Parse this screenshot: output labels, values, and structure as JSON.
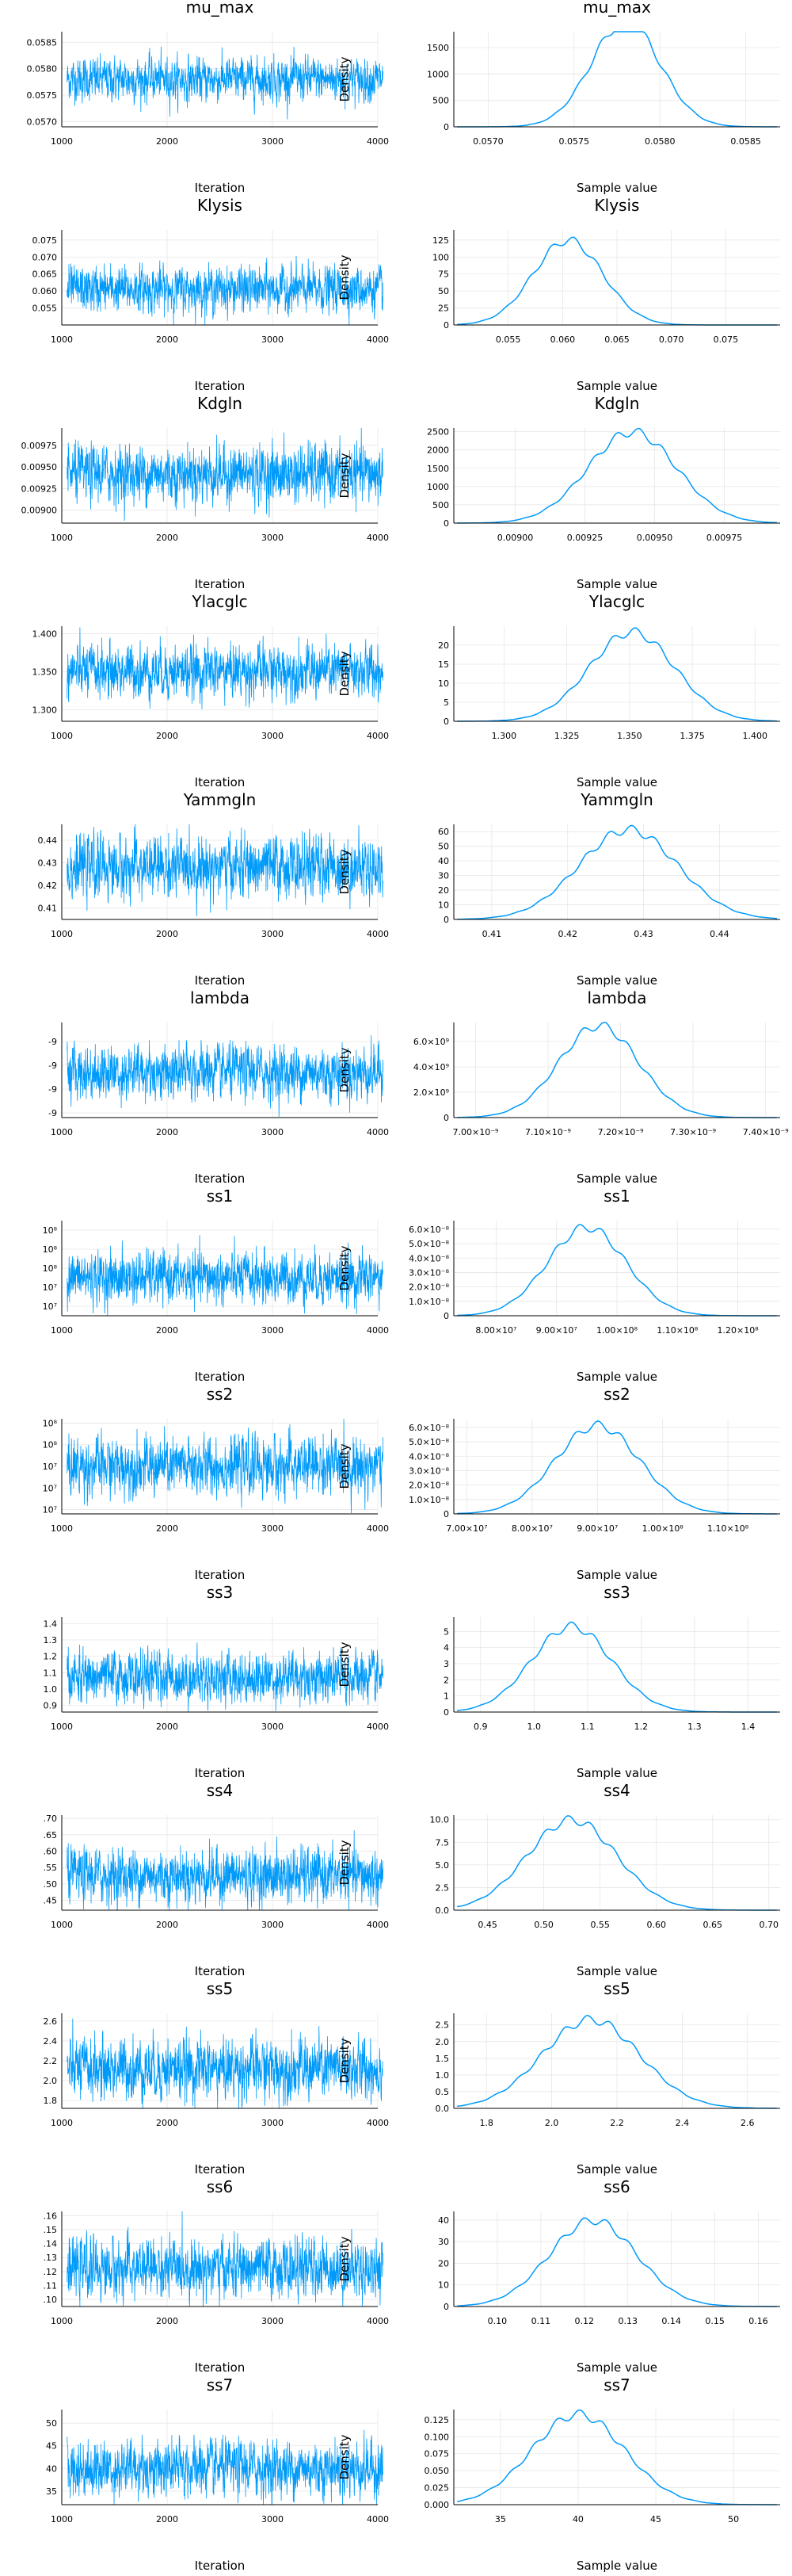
{
  "colors": {
    "series": "#009AFA",
    "axis": "#000000",
    "grid": "#e6e6e6"
  },
  "chart_data": [
    {
      "param": "mu_max",
      "mean": 0.0578,
      "sd": 0.0002,
      "trace": {
        "type": "line",
        "title": "mu_max",
        "xlabel": "Iteration",
        "ylabel": "",
        "x_range": [
          1000,
          4000
        ],
        "x_ticks": [
          "1000",
          "2000",
          "3000",
          "4000"
        ],
        "y_range": [
          0.0569,
          0.0587
        ],
        "y_ticks": [
          0.057,
          0.0575,
          0.058,
          0.0585
        ],
        "y_tick_labels": [
          "0.0570",
          "0.0575",
          "0.0580",
          "0.0585"
        ]
      },
      "density": {
        "type": "line",
        "title": "mu_max",
        "xlabel": "Sample value",
        "ylabel": "Density",
        "x_range": [
          0.0568,
          0.0587
        ],
        "x_ticks": [
          0.057,
          0.0575,
          0.058,
          0.0585
        ],
        "x_tick_labels": [
          "0.0570",
          "0.0575",
          "0.0580",
          "0.0585"
        ],
        "y_range": [
          0,
          1800
        ],
        "y_ticks": [
          0,
          500,
          1000,
          1500
        ],
        "y_tick_labels": [
          "0",
          "500",
          "1000",
          "1500"
        ]
      }
    },
    {
      "param": "Klysis",
      "mean": 0.0605,
      "sd": 0.0032,
      "trace": {
        "type": "line",
        "title": "Klysis",
        "xlabel": "Iteration",
        "ylabel": "",
        "x_range": [
          1000,
          4000
        ],
        "x_ticks": [
          "1000",
          "2000",
          "3000",
          "4000"
        ],
        "y_range": [
          0.05,
          0.078
        ],
        "y_ticks": [
          0.055,
          0.06,
          0.065,
          0.07,
          0.075
        ],
        "y_tick_labels": [
          "0.055",
          "0.060",
          "0.065",
          "0.070",
          "0.075"
        ]
      },
      "density": {
        "type": "line",
        "title": "Klysis",
        "xlabel": "Sample value",
        "ylabel": "Density",
        "x_range": [
          0.05,
          0.08
        ],
        "x_ticks": [
          0.055,
          0.06,
          0.065,
          0.07,
          0.075
        ],
        "x_tick_labels": [
          "0.055",
          "0.060",
          "0.065",
          "0.070",
          "0.075"
        ],
        "y_range": [
          0,
          140
        ],
        "y_ticks": [
          0,
          25,
          50,
          75,
          100,
          125
        ],
        "y_tick_labels": [
          "0",
          "25",
          "50",
          "75",
          "100",
          "125"
        ]
      }
    },
    {
      "param": "Kdgln",
      "mean": 0.00942,
      "sd": 0.00016,
      "trace": {
        "type": "line",
        "title": "Kdgln",
        "xlabel": "Iteration",
        "ylabel": "",
        "x_range": [
          1000,
          4000
        ],
        "x_ticks": [
          "1000",
          "2000",
          "3000",
          "4000"
        ],
        "y_range": [
          0.00885,
          0.00995
        ],
        "y_ticks": [
          0.009,
          0.00925,
          0.0095,
          0.00975
        ],
        "y_tick_labels": [
          "0.00900",
          "0.00925",
          "0.00950",
          "0.00975"
        ]
      },
      "density": {
        "type": "line",
        "title": "Kdgln",
        "xlabel": "Sample value",
        "ylabel": "Density",
        "x_range": [
          0.00878,
          0.00995
        ],
        "x_ticks": [
          0.009,
          0.00925,
          0.0095,
          0.00975
        ],
        "x_tick_labels": [
          "0.00900",
          "0.00925",
          "0.00950",
          "0.00975"
        ],
        "y_range": [
          0,
          2600
        ],
        "y_ticks": [
          0,
          500,
          1000,
          1500,
          2000,
          2500
        ],
        "y_tick_labels": [
          "0",
          "500",
          "1000",
          "1500",
          "2000",
          "2500"
        ]
      }
    },
    {
      "param": "Ylacglc",
      "mean": 1.351,
      "sd": 0.017,
      "trace": {
        "type": "line",
        "title": "Ylacglc",
        "xlabel": "Iteration",
        "ylabel": "",
        "x_range": [
          1000,
          4000
        ],
        "x_ticks": [
          "1000",
          "2000",
          "3000",
          "4000"
        ],
        "y_range": [
          1.285,
          1.41
        ],
        "y_ticks": [
          1.3,
          1.35,
          1.4
        ],
        "y_tick_labels": [
          "1.300",
          "1.350",
          "1.400"
        ]
      },
      "density": {
        "type": "line",
        "title": "Ylacglc",
        "xlabel": "Sample value",
        "ylabel": "Density",
        "x_range": [
          1.28,
          1.41
        ],
        "x_ticks": [
          1.3,
          1.325,
          1.35,
          1.375,
          1.4
        ],
        "x_tick_labels": [
          "1.300",
          "1.325",
          "1.350",
          "1.375",
          "1.400"
        ],
        "y_range": [
          0,
          25
        ],
        "y_ticks": [
          0,
          5,
          10,
          15,
          20
        ],
        "y_tick_labels": [
          "0",
          "5",
          "10",
          "15",
          "20"
        ]
      }
    },
    {
      "param": "Yammgln",
      "mean": 0.428,
      "sd": 0.0065,
      "trace": {
        "type": "line",
        "title": "Yammgln",
        "xlabel": "Iteration",
        "ylabel": "",
        "x_range": [
          1000,
          4000
        ],
        "x_ticks": [
          "1000",
          "2000",
          "3000",
          "4000"
        ],
        "y_range": [
          0.405,
          0.447
        ],
        "y_ticks": [
          0.41,
          0.42,
          0.43,
          0.44
        ],
        "y_tick_labels": [
          "0.41",
          "0.42",
          "0.43",
          "0.44"
        ]
      },
      "density": {
        "type": "line",
        "title": "Yammgln",
        "xlabel": "Sample value",
        "ylabel": "Density",
        "x_range": [
          0.405,
          0.448
        ],
        "x_ticks": [
          0.41,
          0.42,
          0.43,
          0.44
        ],
        "x_tick_labels": [
          "0.41",
          "0.42",
          "0.43",
          "0.44"
        ],
        "y_range": [
          0,
          65
        ],
        "y_ticks": [
          0,
          10,
          20,
          30,
          40,
          50,
          60
        ],
        "y_tick_labels": [
          "0",
          "10",
          "20",
          "30",
          "40",
          "50",
          "60"
        ]
      }
    },
    {
      "param": "lambda",
      "mean": 7.17e-09,
      "sd": 5.5e-11,
      "trace": {
        "type": "line",
        "title": "lambda",
        "xlabel": "Iteration",
        "ylabel": "",
        "x_range": [
          1000,
          4000
        ],
        "x_ticks": [
          "1000",
          "2000",
          "3000",
          "4000"
        ],
        "y_range": [
          6.98e-09,
          7.38e-09
        ],
        "y_ticks": [
          7e-09,
          7.1e-09,
          7.2e-09,
          7.3e-09
        ],
        "y_tick_labels": [
          "-9",
          "-9",
          "-9",
          "-9"
        ]
      },
      "density": {
        "type": "line",
        "title": "lambda",
        "xlabel": "Sample value",
        "ylabel": "Density",
        "x_range": [
          6.97e-09,
          7.42e-09
        ],
        "x_ticks": [
          7e-09,
          7.1e-09,
          7.2e-09,
          7.3e-09,
          7.4e-09
        ],
        "x_tick_labels": [
          "7.00×10⁻⁹",
          "7.10×10⁻⁹",
          "7.20×10⁻⁹",
          "7.30×10⁻⁹",
          "7.40×10⁻⁹"
        ],
        "y_range": [
          0,
          7500000000.0
        ],
        "y_ticks": [
          0,
          2000000000.0,
          4000000000.0,
          6000000000.0
        ],
        "y_tick_labels": [
          "0",
          "2.0×10⁹",
          "4.0×10⁹",
          "6.0×10⁹"
        ]
      }
    },
    {
      "param": "ss1",
      "mean": 95000000.0,
      "sd": 6500000.0,
      "trace": {
        "type": "line",
        "title": "ss1",
        "xlabel": "Iteration",
        "ylabel": "",
        "x_range": [
          1000,
          4000
        ],
        "x_ticks": [
          "1000",
          "2000",
          "3000",
          "4000"
        ],
        "y_range": [
          75000000.0,
          125000000.0
        ],
        "y_ticks": [
          80000000.0,
          90000000.0,
          100000000.0,
          110000000.0,
          120000000.0
        ],
        "y_tick_labels": [
          "10⁷",
          "10⁷",
          "10⁸",
          "10⁸",
          "10⁸"
        ]
      },
      "density": {
        "type": "line",
        "title": "ss1",
        "xlabel": "Sample value",
        "ylabel": "Density",
        "x_range": [
          73000000.0,
          127000000.0
        ],
        "x_ticks": [
          80000000.0,
          90000000.0,
          100000000.0,
          110000000.0,
          120000000.0
        ],
        "x_tick_labels": [
          "8.00×10⁷",
          "9.00×10⁷",
          "1.00×10⁸",
          "1.10×10⁸",
          "1.20×10⁸"
        ],
        "y_range": [
          0,
          6.6e-08
        ],
        "y_ticks": [
          0,
          1e-08,
          2e-08,
          3e-08,
          4e-08,
          5e-08,
          6e-08
        ],
        "y_tick_labels": [
          "0",
          "1.0×10⁻⁸",
          "2.0×10⁻⁸",
          "3.0×10⁻⁸",
          "4.0×10⁻⁸",
          "5.0×10⁻⁸",
          "6.0×10⁻⁸"
        ]
      }
    },
    {
      "param": "ss2",
      "mean": 90000000.0,
      "sd": 6500000.0,
      "trace": {
        "type": "line",
        "title": "ss2",
        "xlabel": "Iteration",
        "ylabel": "",
        "x_range": [
          1000,
          4000
        ],
        "x_ticks": [
          "1000",
          "2000",
          "3000",
          "4000"
        ],
        "y_range": [
          68000000.0,
          112000000.0
        ],
        "y_ticks": [
          70000000.0,
          80000000.0,
          90000000.0,
          100000000.0,
          110000000.0
        ],
        "y_tick_labels": [
          "10⁷",
          "10⁷",
          "10⁷",
          "10⁸",
          "10⁸"
        ]
      },
      "density": {
        "type": "line",
        "title": "ss2",
        "xlabel": "Sample value",
        "ylabel": "Density",
        "x_range": [
          68000000.0,
          118000000.0
        ],
        "x_ticks": [
          70000000.0,
          80000000.0,
          90000000.0,
          100000000.0,
          110000000.0
        ],
        "x_tick_labels": [
          "7.00×10⁷",
          "8.00×10⁷",
          "9.00×10⁷",
          "1.00×10⁸",
          "1.10×10⁸"
        ],
        "y_range": [
          0,
          6.6e-08
        ],
        "y_ticks": [
          0,
          1e-08,
          2e-08,
          3e-08,
          4e-08,
          5e-08,
          6e-08
        ],
        "y_tick_labels": [
          "0",
          "1.0×10⁻⁸",
          "2.0×10⁻⁸",
          "3.0×10⁻⁸",
          "4.0×10⁻⁸",
          "5.0×10⁻⁸",
          "6.0×10⁻⁸"
        ]
      }
    },
    {
      "param": "ss3",
      "mean": 1.07,
      "sd": 0.075,
      "trace": {
        "type": "line",
        "title": "ss3",
        "xlabel": "Iteration",
        "ylabel": "",
        "x_range": [
          1000,
          4000
        ],
        "x_ticks": [
          "1000",
          "2000",
          "3000",
          "4000"
        ],
        "y_range": [
          0.86,
          1.44
        ],
        "y_ticks": [
          0.9,
          1.0,
          1.1,
          1.2,
          1.3,
          1.4
        ],
        "y_tick_labels": [
          "0.9",
          "1.0",
          "1.1",
          "1.2",
          "1.3",
          "1.4"
        ]
      },
      "density": {
        "type": "line",
        "title": "ss3",
        "xlabel": "Sample value",
        "ylabel": "Density",
        "x_range": [
          0.85,
          1.46
        ],
        "x_ticks": [
          0.9,
          1.0,
          1.1,
          1.2,
          1.3,
          1.4
        ],
        "x_tick_labels": [
          "0.9",
          "1.0",
          "1.1",
          "1.2",
          "1.3",
          "1.4"
        ],
        "y_range": [
          0,
          5.9
        ],
        "y_ticks": [
          0,
          1,
          2,
          3,
          4,
          5
        ],
        "y_tick_labels": [
          "0",
          "1",
          "2",
          "3",
          "4",
          "5"
        ]
      }
    },
    {
      "param": "ss4",
      "mean": 0.525,
      "sd": 0.04,
      "trace": {
        "type": "line",
        "title": "ss4",
        "xlabel": "Iteration",
        "ylabel": "",
        "x_range": [
          1000,
          4000
        ],
        "x_ticks": [
          "1000",
          "2000",
          "3000",
          "4000"
        ],
        "y_range": [
          0.42,
          0.71
        ],
        "y_ticks": [
          0.45,
          0.5,
          0.55,
          0.6,
          0.65,
          0.7
        ],
        "y_tick_labels": [
          ".45",
          ".50",
          ".55",
          ".60",
          ".65",
          ".70"
        ]
      },
      "density": {
        "type": "line",
        "title": "ss4",
        "xlabel": "Sample value",
        "ylabel": "Density",
        "x_range": [
          0.42,
          0.71
        ],
        "x_ticks": [
          0.45,
          0.5,
          0.55,
          0.6,
          0.65,
          0.7
        ],
        "x_tick_labels": [
          "0.45",
          "0.50",
          "0.55",
          "0.60",
          "0.65",
          "0.70"
        ],
        "y_range": [
          0,
          10.5
        ],
        "y_ticks": [
          0,
          2.5,
          5.0,
          7.5,
          10.0
        ],
        "y_tick_labels": [
          "0.0",
          "2.5",
          "5.0",
          "7.5",
          "10.0"
        ]
      }
    },
    {
      "param": "ss5",
      "mean": 2.12,
      "sd": 0.15,
      "trace": {
        "type": "line",
        "title": "ss5",
        "xlabel": "Iteration",
        "ylabel": "",
        "x_range": [
          1000,
          4000
        ],
        "x_ticks": [
          "1000",
          "2000",
          "3000",
          "4000"
        ],
        "y_range": [
          1.72,
          2.68
        ],
        "y_ticks": [
          1.8,
          2.0,
          2.2,
          2.4,
          2.6
        ],
        "y_tick_labels": [
          "1.8",
          "2.0",
          "2.2",
          "2.4",
          "2.6"
        ]
      },
      "density": {
        "type": "line",
        "title": "ss5",
        "xlabel": "Sample value",
        "ylabel": "Density",
        "x_range": [
          1.7,
          2.7
        ],
        "x_ticks": [
          1.8,
          2.0,
          2.2,
          2.4,
          2.6
        ],
        "x_tick_labels": [
          "1.8",
          "2.0",
          "2.2",
          "2.4",
          "2.6"
        ],
        "y_range": [
          0,
          2.85
        ],
        "y_ticks": [
          0,
          0.5,
          1.0,
          1.5,
          2.0,
          2.5
        ],
        "y_tick_labels": [
          "0.0",
          "0.5",
          "1.0",
          "1.5",
          "2.0",
          "2.5"
        ]
      }
    },
    {
      "param": "ss6",
      "mean": 0.122,
      "sd": 0.01,
      "trace": {
        "type": "line",
        "title": "ss6",
        "xlabel": "Iteration",
        "ylabel": "",
        "x_range": [
          1000,
          4000
        ],
        "x_ticks": [
          "1000",
          "2000",
          "3000",
          "4000"
        ],
        "y_range": [
          0.095,
          0.163
        ],
        "y_ticks": [
          0.1,
          0.11,
          0.12,
          0.13,
          0.14,
          0.15,
          0.16
        ],
        "y_tick_labels": [
          ".10",
          ".11",
          ".12",
          ".13",
          ".14",
          ".15",
          ".16"
        ]
      },
      "density": {
        "type": "line",
        "title": "ss6",
        "xlabel": "Sample value",
        "ylabel": "Density",
        "x_range": [
          0.09,
          0.165
        ],
        "x_ticks": [
          0.1,
          0.11,
          0.12,
          0.13,
          0.14,
          0.15,
          0.16
        ],
        "x_tick_labels": [
          "0.10",
          "0.11",
          "0.12",
          "0.13",
          "0.14",
          "0.15",
          "0.16"
        ],
        "y_range": [
          0,
          44
        ],
        "y_ticks": [
          0,
          10,
          20,
          30,
          40
        ],
        "y_tick_labels": [
          "0",
          "10",
          "20",
          "30",
          "40"
        ]
      }
    },
    {
      "param": "ss7",
      "mean": 40,
      "sd": 3,
      "trace": {
        "type": "line",
        "title": "ss7",
        "xlabel": "Iteration",
        "ylabel": "",
        "x_range": [
          1000,
          4000
        ],
        "x_ticks": [
          "1000",
          "2000",
          "3000",
          "4000"
        ],
        "y_range": [
          32,
          53
        ],
        "y_ticks": [
          35,
          40,
          45,
          50
        ],
        "y_tick_labels": [
          "35",
          "40",
          "45",
          "50"
        ]
      },
      "density": {
        "type": "line",
        "title": "ss7",
        "xlabel": "Sample value",
        "ylabel": "Density",
        "x_range": [
          32,
          53
        ],
        "x_ticks": [
          35,
          40,
          45,
          50
        ],
        "x_tick_labels": [
          "35",
          "40",
          "45",
          "50"
        ],
        "y_range": [
          0,
          0.14
        ],
        "y_ticks": [
          0,
          0.025,
          0.05,
          0.075,
          0.1,
          0.125
        ],
        "y_tick_labels": [
          "0.000",
          "0.025",
          "0.050",
          "0.075",
          "0.100",
          "0.125"
        ]
      }
    }
  ]
}
